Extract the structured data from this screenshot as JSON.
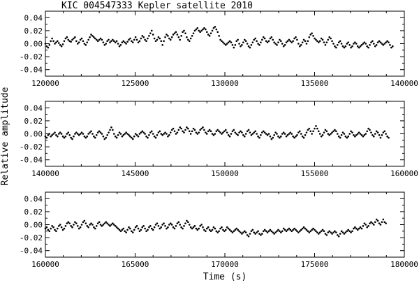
{
  "chart_data": {
    "type": "scatter",
    "title": "KIC 004547333 Kepler satellite 2010",
    "xlabel": "Time (s)",
    "ylabel": "Relative amplitude",
    "grid": false,
    "panels": [
      {
        "xlim": [
          120000,
          140000
        ],
        "ylim": [
          -0.05,
          0.05
        ],
        "xticks": [
          "120000",
          "125000",
          "130000",
          "135000",
          "140000"
        ],
        "yticks": [
          "0.04",
          "0.02",
          "0.00",
          "-0.02",
          "-0.04"
        ],
        "ytick_values": [
          0.04,
          0.02,
          0.0,
          -0.02,
          -0.04
        ],
        "xtick_values": [
          120000,
          125000,
          130000,
          135000,
          140000
        ],
        "series": [
          {
            "x_start": 120000,
            "x_step": 75,
            "values": [
              0.0,
              -0.004,
              -0.006,
              -0.002,
              0.004,
              0.008,
              0.004,
              0.0,
              0.002,
              0.004,
              0.001,
              -0.002,
              -0.004,
              -0.001,
              0.004,
              0.008,
              0.01,
              0.006,
              0.004,
              0.003,
              0.006,
              0.008,
              0.01,
              0.004,
              0.0,
              0.002,
              0.006,
              0.008,
              0.004,
              0.0,
              -0.002,
              0.002,
              0.006,
              0.01,
              0.014,
              0.012,
              0.01,
              0.008,
              0.006,
              0.004,
              0.006,
              0.008,
              0.006,
              0.002,
              -0.002,
              0.0,
              0.004,
              0.006,
              0.002,
              0.004,
              0.006,
              0.004,
              0.002,
              0.004,
              0.0,
              -0.004,
              -0.002,
              0.002,
              0.004,
              0.002,
              0.0,
              0.003,
              0.006,
              0.008,
              0.004,
              0.002,
              0.006,
              0.01,
              0.006,
              0.002,
              0.004,
              0.008,
              0.012,
              0.01,
              0.006,
              0.004,
              0.008,
              0.012,
              0.016,
              0.02,
              0.014,
              0.008,
              0.004,
              0.006,
              0.01,
              0.008,
              0.004,
              -0.002,
              0.004,
              0.01,
              0.014,
              0.012,
              0.008,
              0.006,
              0.01,
              0.014,
              0.016,
              0.018,
              0.014,
              0.01,
              0.006,
              0.012,
              0.018,
              0.02,
              0.016,
              0.01,
              0.006,
              0.004,
              0.008,
              0.012,
              0.016,
              0.02,
              0.022,
              0.024,
              0.02,
              0.018,
              0.02,
              0.022,
              0.024,
              0.022,
              0.018,
              0.014,
              0.012,
              0.016,
              0.02,
              0.024,
              0.026,
              0.022,
              0.018,
              0.012,
              0.006,
              0.004,
              0.002,
              0.0,
              -0.002,
              0.0,
              0.002,
              0.004,
              0.002,
              -0.002,
              -0.006,
              -0.002,
              0.004,
              0.006,
              0.0,
              -0.004,
              -0.002,
              0.002,
              0.006,
              0.004,
              0.0,
              -0.004,
              -0.006,
              -0.002,
              0.002,
              0.006,
              0.008,
              0.004,
              0.0,
              -0.002,
              0.002,
              0.006,
              0.01,
              0.008,
              0.004,
              0.002,
              0.004,
              0.008,
              0.01,
              0.006,
              0.002,
              0.0,
              -0.002,
              0.002,
              0.006,
              0.004,
              0.0,
              -0.004,
              -0.002,
              0.002,
              0.004,
              0.006,
              0.004,
              0.002,
              0.004,
              0.008,
              0.01,
              0.006,
              0.0,
              -0.004,
              -0.002,
              0.002,
              0.006,
              0.004,
              0.0,
              0.004,
              0.01,
              0.014,
              0.016,
              0.012,
              0.008,
              0.006,
              0.004,
              0.002,
              0.004,
              0.008,
              0.006,
              0.002,
              -0.002,
              0.002,
              0.006,
              0.01,
              0.008,
              0.004,
              0.0,
              -0.004,
              -0.006,
              -0.002,
              0.002,
              0.004,
              0.0,
              -0.004,
              -0.006,
              -0.004,
              0.0,
              0.002,
              -0.002,
              -0.006,
              -0.004,
              0.0,
              0.002,
              0.0,
              -0.004,
              -0.006,
              -0.004,
              -0.002,
              0.0,
              0.002,
              0.0,
              -0.004,
              -0.006,
              -0.002,
              0.002,
              0.004,
              0.0,
              -0.004,
              -0.002,
              0.002,
              0.004,
              0.002,
              0.0,
              -0.002,
              0.0,
              0.002,
              0.004,
              0.002,
              -0.002,
              -0.006,
              -0.004
            ]
          }
        ]
      },
      {
        "xlim": [
          140000,
          160000
        ],
        "ylim": [
          -0.05,
          0.05
        ],
        "xticks": [
          "140000",
          "145000",
          "150000",
          "155000",
          "160000"
        ],
        "yticks": [
          "0.04",
          "0.02",
          "0.00",
          "-0.02",
          "-0.04"
        ],
        "ytick_values": [
          0.04,
          0.02,
          0.0,
          -0.02,
          -0.04
        ],
        "xtick_values": [
          140000,
          145000,
          150000,
          155000,
          160000
        ],
        "series": [
          {
            "x_start": 140000,
            "x_step": 75,
            "values": [
              -0.004,
              -0.006,
              -0.002,
              0.0,
              -0.004,
              -0.002,
              0.0,
              0.002,
              -0.002,
              -0.004,
              0.0,
              0.002,
              0.0,
              -0.004,
              -0.006,
              -0.004,
              0.0,
              0.002,
              -0.002,
              -0.006,
              -0.008,
              -0.004,
              0.0,
              0.002,
              0.0,
              -0.002,
              0.0,
              0.002,
              0.0,
              -0.004,
              -0.006,
              -0.004,
              0.0,
              0.002,
              0.004,
              0.0,
              -0.004,
              -0.006,
              -0.002,
              0.002,
              0.004,
              0.002,
              0.0,
              -0.004,
              -0.008,
              -0.006,
              -0.002,
              0.002,
              0.006,
              0.01,
              0.006,
              0.0,
              -0.004,
              -0.006,
              -0.002,
              0.002,
              0.0,
              -0.004,
              -0.002,
              0.0,
              0.002,
              0.0,
              -0.002,
              -0.004,
              -0.006,
              -0.008,
              -0.004,
              0.0,
              -0.002,
              -0.004,
              0.0,
              0.002,
              0.004,
              0.002,
              0.0,
              -0.004,
              -0.006,
              -0.002,
              0.002,
              0.004,
              0.0,
              -0.004,
              -0.006,
              -0.002,
              0.002,
              0.004,
              0.0,
              -0.002,
              0.0,
              0.002,
              0.0,
              -0.004,
              -0.002,
              0.002,
              0.006,
              0.008,
              0.004,
              0.0,
              0.002,
              0.006,
              0.01,
              0.008,
              0.004,
              0.002,
              0.006,
              0.01,
              0.008,
              0.004,
              0.0,
              0.004,
              0.008,
              0.006,
              0.002,
              0.0,
              0.002,
              0.006,
              0.008,
              0.01,
              0.006,
              0.002,
              0.0,
              0.004,
              0.006,
              0.004,
              0.0,
              -0.002,
              0.0,
              0.004,
              0.006,
              0.004,
              0.002,
              0.0,
              0.002,
              0.004,
              0.006,
              0.002,
              -0.002,
              -0.004,
              0.0,
              0.004,
              0.006,
              0.002,
              0.0,
              -0.002,
              0.002,
              0.004,
              0.002,
              -0.002,
              -0.004,
              0.0,
              0.004,
              0.006,
              0.002,
              -0.002,
              0.0,
              0.002,
              0.004,
              0.0,
              -0.004,
              -0.006,
              -0.002,
              0.002,
              0.004,
              0.002,
              0.0,
              -0.002,
              0.0,
              -0.004,
              -0.008,
              -0.006,
              -0.002,
              0.002,
              0.0,
              -0.004,
              -0.006,
              -0.004,
              0.0,
              0.002,
              0.0,
              -0.004,
              -0.002,
              0.0,
              0.002,
              0.0,
              -0.004,
              -0.006,
              -0.004,
              -0.002,
              0.002,
              0.004,
              0.0,
              -0.004,
              -0.006,
              -0.002,
              0.002,
              0.006,
              0.008,
              0.004,
              0.0,
              0.004,
              0.008,
              0.012,
              0.008,
              0.004,
              0.0,
              -0.004,
              -0.002,
              0.002,
              0.006,
              0.004,
              0.0,
              -0.002,
              0.0,
              0.002,
              0.004,
              0.006,
              0.004,
              0.0,
              -0.004,
              -0.006,
              -0.002,
              0.002,
              0.0,
              -0.004,
              -0.006,
              -0.004,
              0.0,
              0.004,
              0.002,
              -0.002,
              -0.004,
              -0.002,
              0.0,
              0.002,
              0.0,
              -0.002,
              -0.004,
              -0.002,
              0.0,
              0.004,
              0.008,
              0.006,
              0.002,
              -0.002,
              -0.004,
              0.0,
              0.004,
              0.002,
              -0.002,
              -0.006,
              -0.002,
              0.002,
              0.004,
              0.0,
              -0.004,
              -0.006
            ]
          }
        ]
      },
      {
        "xlim": [
          160000,
          180000
        ],
        "ylim": [
          -0.05,
          0.05
        ],
        "xticks": [
          "160000",
          "165000",
          "170000",
          "175000",
          "180000"
        ],
        "yticks": [
          "0.04",
          "0.02",
          "0.00",
          "-0.02",
          "-0.04"
        ],
        "ytick_values": [
          0.04,
          0.02,
          0.0,
          -0.02,
          -0.04
        ],
        "xtick_values": [
          160000,
          165000,
          170000,
          175000,
          180000
        ],
        "series": [
          {
            "x_start": 160000,
            "x_step": 75,
            "values": [
              -0.006,
              -0.004,
              -0.008,
              -0.01,
              -0.006,
              -0.002,
              -0.004,
              -0.008,
              -0.01,
              -0.006,
              -0.002,
              0.0,
              -0.004,
              -0.008,
              -0.006,
              -0.002,
              0.002,
              0.004,
              0.002,
              -0.002,
              -0.004,
              0.0,
              0.004,
              0.002,
              -0.002,
              -0.006,
              -0.004,
              0.0,
              0.004,
              0.006,
              0.002,
              -0.002,
              -0.004,
              0.0,
              0.002,
              0.0,
              -0.004,
              -0.006,
              -0.002,
              0.002,
              0.004,
              0.0,
              -0.002,
              0.0,
              0.002,
              0.004,
              0.002,
              0.0,
              -0.002,
              0.0,
              0.002,
              0.0,
              -0.002,
              -0.004,
              -0.006,
              -0.008,
              -0.01,
              -0.008,
              -0.006,
              -0.01,
              -0.012,
              -0.008,
              -0.004,
              -0.006,
              -0.01,
              -0.012,
              -0.008,
              -0.004,
              -0.002,
              -0.006,
              -0.01,
              -0.008,
              -0.004,
              -0.002,
              -0.006,
              -0.01,
              -0.008,
              -0.004,
              -0.002,
              -0.006,
              -0.008,
              -0.004,
              0.0,
              0.002,
              -0.002,
              -0.006,
              -0.004,
              0.0,
              0.002,
              -0.002,
              -0.006,
              -0.004,
              0.0,
              0.002,
              0.0,
              -0.004,
              -0.006,
              -0.002,
              0.002,
              0.004,
              0.0,
              -0.004,
              -0.006,
              -0.002,
              0.002,
              0.006,
              0.004,
              0.0,
              -0.004,
              -0.006,
              -0.004,
              -0.002,
              -0.006,
              -0.008,
              -0.006,
              -0.002,
              0.0,
              -0.004,
              -0.008,
              -0.01,
              -0.006,
              -0.004,
              -0.008,
              -0.01,
              -0.008,
              -0.004,
              -0.006,
              -0.01,
              -0.012,
              -0.01,
              -0.006,
              -0.004,
              -0.008,
              -0.01,
              -0.008,
              -0.004,
              -0.006,
              -0.008,
              -0.01,
              -0.012,
              -0.01,
              -0.008,
              -0.006,
              -0.008,
              -0.01,
              -0.012,
              -0.014,
              -0.012,
              -0.01,
              -0.012,
              -0.016,
              -0.018,
              -0.014,
              -0.01,
              -0.008,
              -0.012,
              -0.014,
              -0.012,
              -0.01,
              -0.014,
              -0.016,
              -0.014,
              -0.01,
              -0.008,
              -0.01,
              -0.012,
              -0.01,
              -0.008,
              -0.01,
              -0.012,
              -0.014,
              -0.012,
              -0.01,
              -0.008,
              -0.01,
              -0.012,
              -0.01,
              -0.006,
              -0.008,
              -0.01,
              -0.008,
              -0.006,
              -0.008,
              -0.01,
              -0.008,
              -0.006,
              -0.008,
              -0.01,
              -0.012,
              -0.01,
              -0.008,
              -0.006,
              -0.004,
              -0.006,
              -0.008,
              -0.01,
              -0.012,
              -0.01,
              -0.008,
              -0.006,
              -0.008,
              -0.01,
              -0.012,
              -0.014,
              -0.012,
              -0.01,
              -0.008,
              -0.01,
              -0.014,
              -0.016,
              -0.012,
              -0.01,
              -0.012,
              -0.014,
              -0.012,
              -0.01,
              -0.012,
              -0.016,
              -0.018,
              -0.014,
              -0.01,
              -0.012,
              -0.014,
              -0.012,
              -0.01,
              -0.008,
              -0.01,
              -0.012,
              -0.01,
              -0.006,
              -0.004,
              -0.006,
              -0.008,
              -0.006,
              -0.004,
              -0.006,
              -0.002,
              0.002,
              0.0,
              -0.004,
              -0.002,
              0.002,
              0.004,
              0.002,
              0.0,
              0.004,
              0.008,
              0.006,
              0.002,
              0.0,
              0.004,
              0.008,
              0.004,
              0.002
            ]
          }
        ]
      }
    ]
  }
}
